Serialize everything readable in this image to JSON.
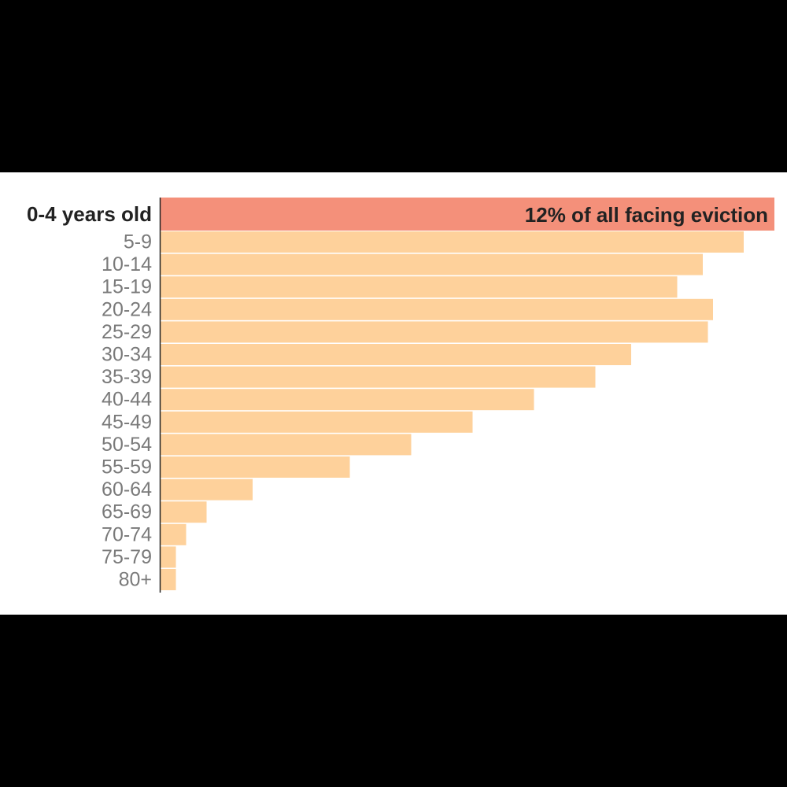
{
  "colors": {
    "highlight_bar": "#f4907a",
    "bar": "#fed19b",
    "axis": "#222222"
  },
  "chart_data": {
    "type": "bar",
    "orientation": "horizontal",
    "categories": [
      "0-4 years old",
      "5-9",
      "10-14",
      "15-19",
      "20-24",
      "25-29",
      "30-34",
      "35-39",
      "40-44",
      "45-49",
      "50-54",
      "55-59",
      "60-64",
      "65-69",
      "70-74",
      "75-79",
      "80+"
    ],
    "values": [
      12,
      11.4,
      10.6,
      10.1,
      10.8,
      10.7,
      9.2,
      8.5,
      7.3,
      6.1,
      4.9,
      3.7,
      1.8,
      0.9,
      0.5,
      0.3,
      0.3
    ],
    "value_unit": "%",
    "highlight_index": 0,
    "highlight_label": "12% of all facing eviction",
    "xlim": [
      0,
      12
    ],
    "grid": false,
    "legend": "none"
  }
}
